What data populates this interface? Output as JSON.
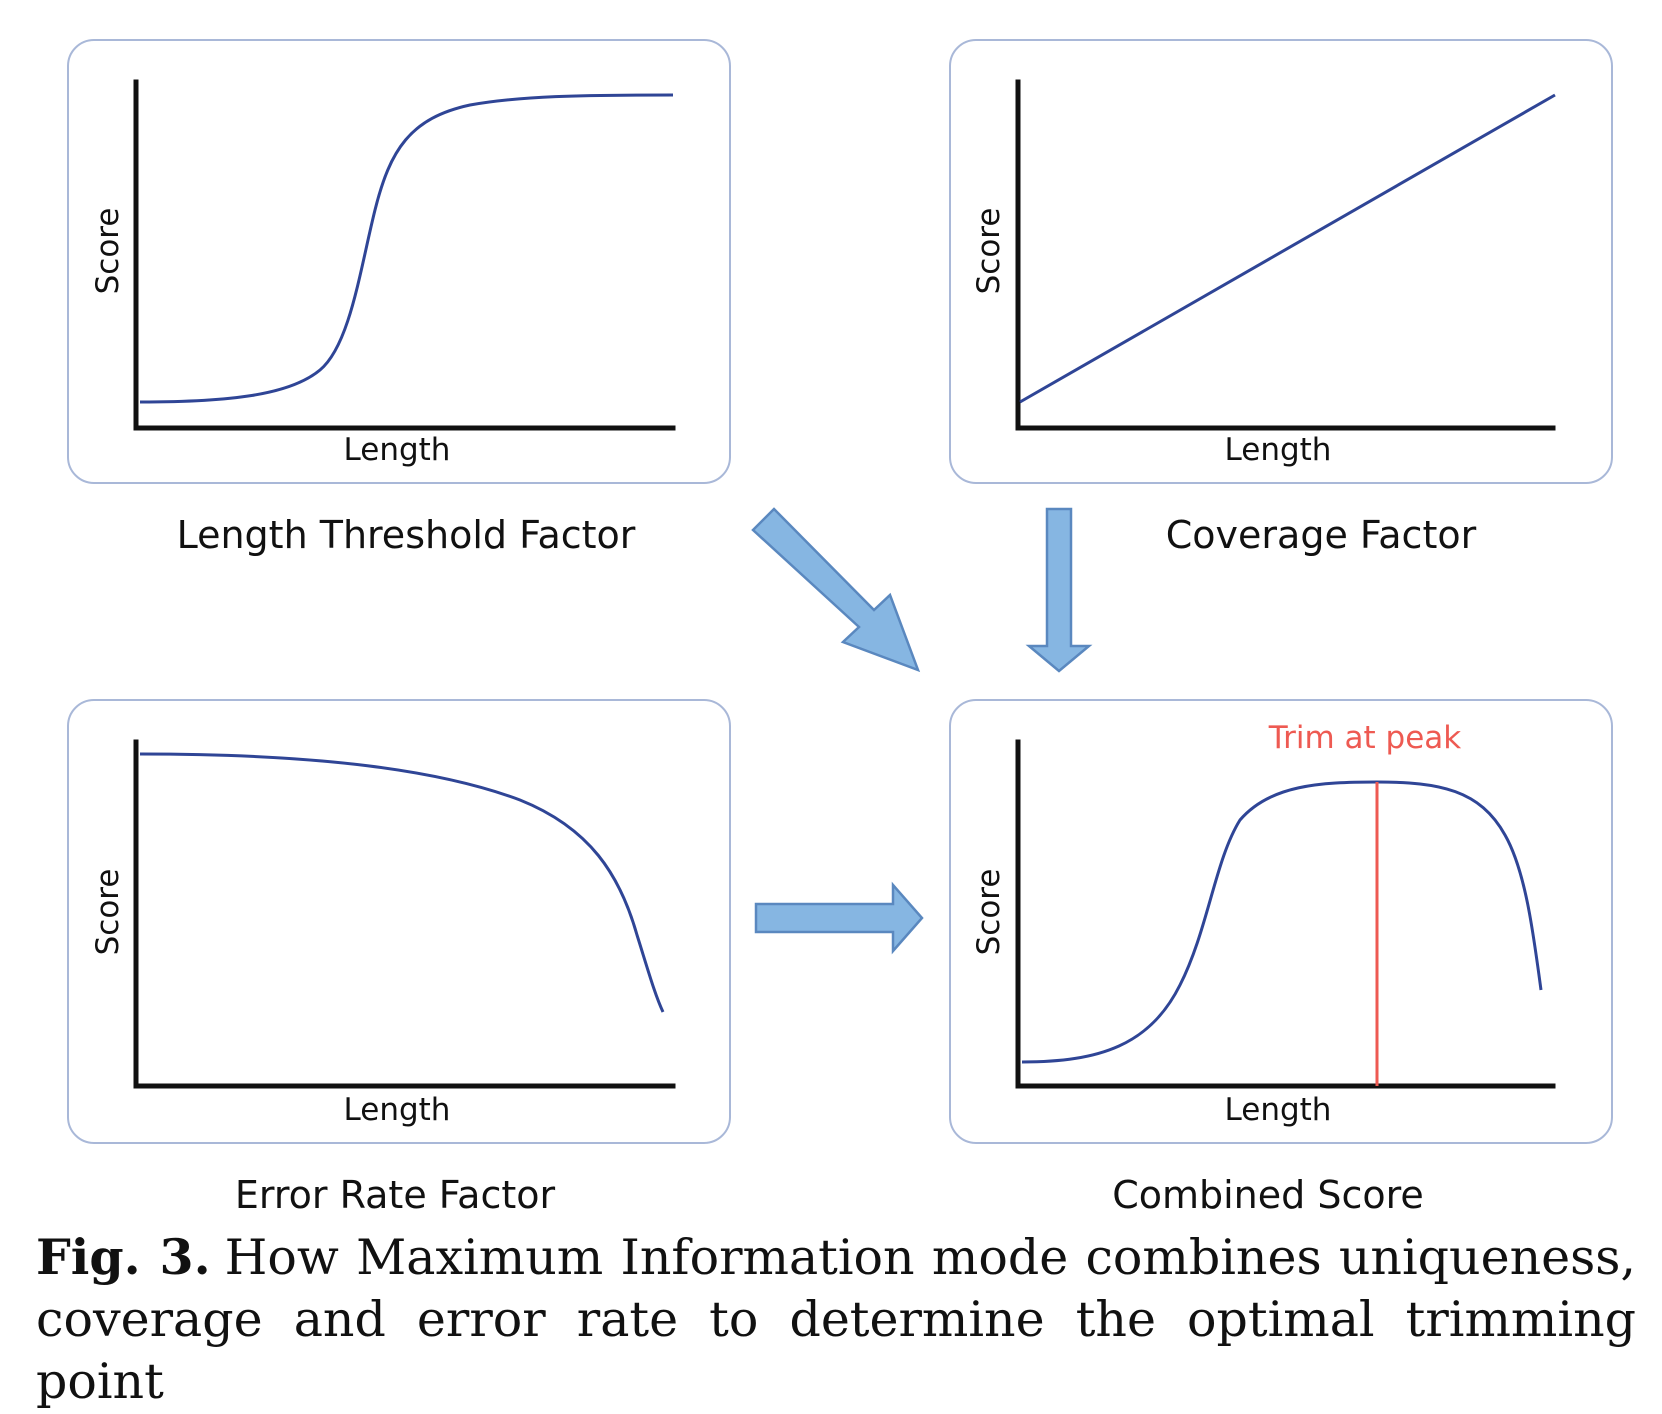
{
  "panels": {
    "length_threshold": {
      "title": "Length Threshold Factor",
      "x_label": "Length",
      "y_label": "Score"
    },
    "coverage": {
      "title": "Coverage Factor",
      "x_label": "Length",
      "y_label": "Score"
    },
    "error_rate": {
      "title": "Error Rate Factor",
      "x_label": "Length",
      "y_label": "Score"
    },
    "combined": {
      "title": "Combined Score",
      "x_label": "Length",
      "y_label": "Score",
      "annotation": "Trim at peak"
    }
  },
  "arrows": [
    {
      "from": "length_threshold",
      "to": "combined",
      "direction": "diagonal-down-right"
    },
    {
      "from": "coverage",
      "to": "combined",
      "direction": "down"
    },
    {
      "from": "error_rate",
      "to": "combined",
      "direction": "right"
    }
  ],
  "colors": {
    "curve": "#2f4596",
    "peak_marker": "#ee5a52",
    "arrow_fill": "#86b6e2",
    "arrow_stroke": "#5a88bf",
    "panel_border": "#a9b8d8"
  },
  "caption": {
    "label": "Fig. 3.",
    "text": "How Maximum Information mode combines uniqueness, coverage and error rate to determine the optimal trimming point"
  }
}
